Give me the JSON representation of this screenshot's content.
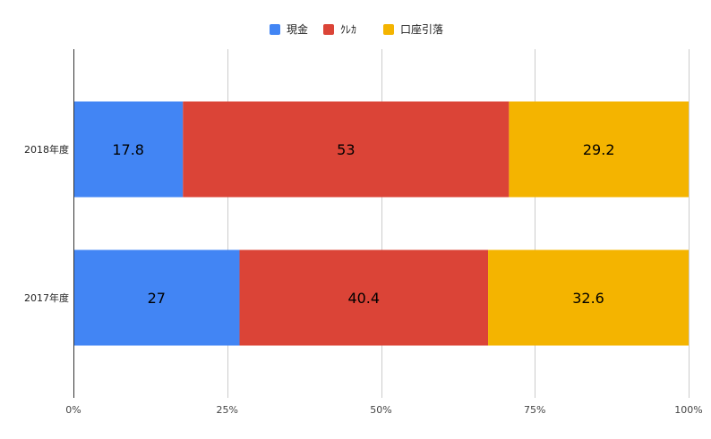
{
  "chart_data": {
    "type": "bar",
    "orientation": "horizontal",
    "stacking": "percent",
    "categories": [
      "2018年度",
      "2017年度"
    ],
    "series": [
      {
        "name": "現金",
        "values": [
          17.8,
          27
        ],
        "color": "#4285f4"
      },
      {
        "name": "ｸﾚｶ",
        "values": [
          53,
          40.4
        ],
        "color": "#db4437"
      },
      {
        "name": "口座引落",
        "values": [
          29.2,
          32.6
        ],
        "color": "#f4b400"
      }
    ],
    "xlim": [
      0,
      100
    ],
    "x_ticks": [
      "0%",
      "25%",
      "50%",
      "75%",
      "100%"
    ],
    "grid": true,
    "legend_position": "top"
  }
}
